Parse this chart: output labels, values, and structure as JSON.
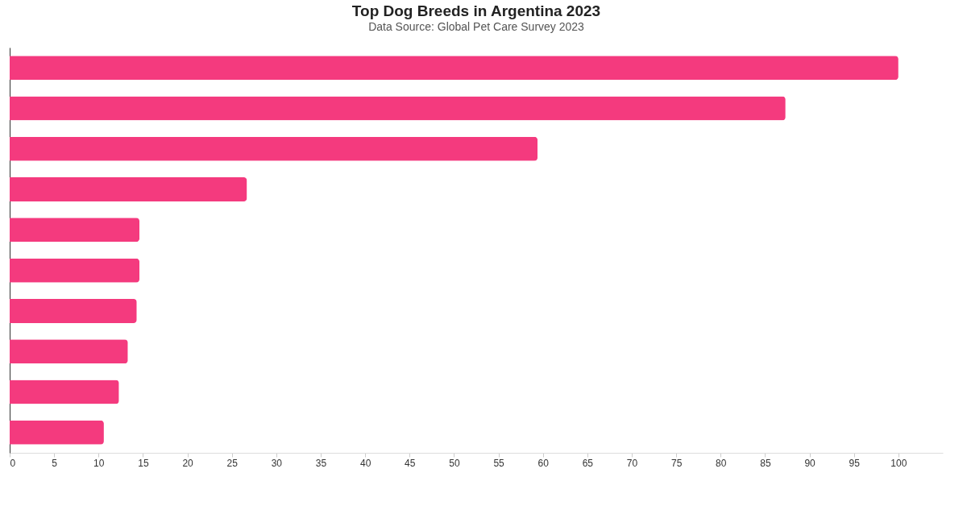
{
  "chart_data": {
    "type": "bar",
    "orientation": "horizontal",
    "title": "Top Dog Breeds in Argentina 2023",
    "subtitle": "Data Source: Global Pet Care Survey 2023",
    "categories": [
      null,
      null,
      null,
      null,
      null,
      null,
      null,
      null,
      null,
      null
    ],
    "values": [
      100,
      87.3,
      59.4,
      26.7,
      14.6,
      14.6,
      14.3,
      13.3,
      12.3,
      10.6
    ],
    "color": "#f43a7e",
    "xlim": [
      0,
      105
    ],
    "xticks": [
      0,
      5,
      10,
      15,
      20,
      25,
      30,
      35,
      40,
      45,
      50,
      55,
      60,
      65,
      70,
      75,
      80,
      85,
      90,
      95,
      100
    ],
    "grid": false
  }
}
